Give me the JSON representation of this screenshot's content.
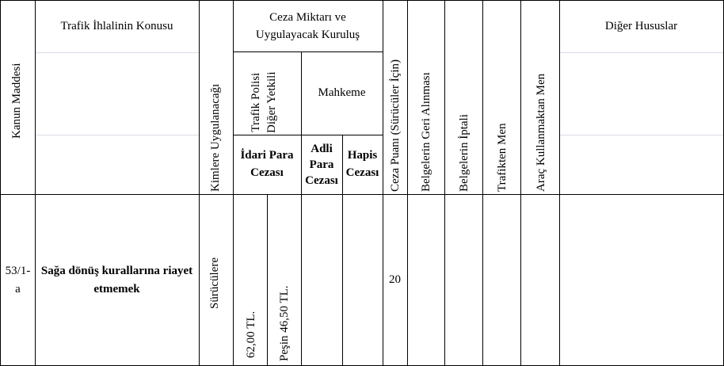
{
  "header": {
    "kanun_maddesi": "Kanun Maddesi",
    "ihlal_konusu": "Trafik İhlalinin Konusu",
    "kimlere": "Kimlere Uygulanacağı",
    "ceza_miktari_line1": "Ceza Miktarı ve",
    "ceza_miktari_line2": "Uygulayacak Kuruluş",
    "trafik_polisi_line1": "Trafik Polisi",
    "trafik_polisi_line2": "Diğer Yetkili",
    "mahkeme": "Mahkeme",
    "idari_para_line1": "İdari Para",
    "idari_para_line2": "Cezası",
    "adli_para_line1": "Adli",
    "adli_para_line2": "Para",
    "adli_para_line3": "Cezası",
    "hapis_line1": "Hapis",
    "hapis_line2": "Cezası",
    "ceza_puani": "Ceza Puanı (Sürücüler İçin)",
    "belge_geri": "Belgelerin Geri Alınması",
    "belge_iptal": "Belgelerin İptali",
    "trafikten_men": "Trafikten Men",
    "arac_men": "Araç Kullanmaktan Men",
    "diger_hususlar": "Diğer Hususlar"
  },
  "row": {
    "madde_line1": "53/1-",
    "madde_line2": "a",
    "konu_line1": "Sağa dönüş kurallarına riayet",
    "konu_line2": "etmemek",
    "kimlere": "Sürücülere",
    "idari_ceza": "62,00 TL.",
    "pesin_ceza": "Peşin 46,50 TL.",
    "ceza_puani": "20"
  }
}
